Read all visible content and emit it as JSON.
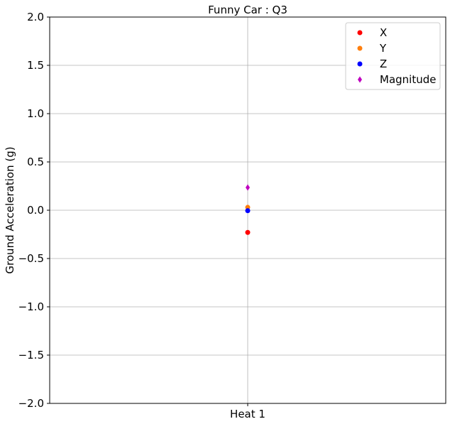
{
  "chart_data": {
    "type": "scatter",
    "title": "Funny Car : Q3",
    "xlabel": "",
    "ylabel": "Ground Acceleration (g)",
    "categories": [
      "Heat 1"
    ],
    "ylim": [
      -2.0,
      2.0
    ],
    "yticks": [
      "2.0",
      "1.5",
      "1.0",
      "0.5",
      "0.0",
      "−0.5",
      "−1.0",
      "−1.5",
      "−2.0"
    ],
    "ytick_values": [
      2.0,
      1.5,
      1.0,
      0.5,
      0.0,
      -0.5,
      -1.0,
      -1.5,
      -2.0
    ],
    "grid": true,
    "legend_position": "top-right",
    "series": [
      {
        "name": "X",
        "values": [
          -0.23
        ],
        "color": "#ff0000",
        "marker": "circle"
      },
      {
        "name": "Y",
        "values": [
          0.03
        ],
        "color": "#ff7f0e",
        "marker": "circle"
      },
      {
        "name": "Z",
        "values": [
          -0.005
        ],
        "color": "#0000ff",
        "marker": "circle"
      },
      {
        "name": "Magnitude",
        "values": [
          0.235
        ],
        "color": "#bf00bf",
        "marker": "diamond"
      }
    ]
  }
}
